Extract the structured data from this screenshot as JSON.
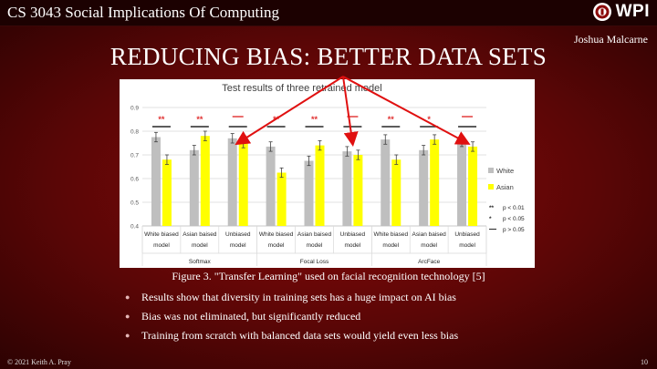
{
  "header": {
    "course_title": "CS 3043 Social Implications Of Computing",
    "logo_text": "WPI",
    "logo_icon": "wpi-seal"
  },
  "author": "Joshua Malcarne",
  "slide_title": "REDUCING BIAS: BETTER DATA SETS",
  "figure_caption": "Figure 3. \"Transfer Learning\" used on facial recognition technology [5]",
  "bullets": [
    "Results show that diversity in training sets has a huge impact on AI bias",
    "Bias was not eliminated, but significantly reduced",
    "Training from scratch with balanced data sets would yield even less bias"
  ],
  "footer": {
    "copyright": "© 2021 Keith A. Pray",
    "page_number": "10"
  },
  "colors": {
    "white_series": "#bfbfbf",
    "asian_series": "#ffff00",
    "significance": "#e03030",
    "arrow": "#e01010"
  },
  "chart_data": {
    "type": "bar",
    "title": "Test results of three retrained model",
    "categories": [
      "White biased model",
      "Asian baised model",
      "Unbiased model",
      "White biased model",
      "Asian baised model",
      "Unbiased model",
      "White biased model",
      "Asian baised model",
      "Unbiased model"
    ],
    "category_lines": [
      [
        "White biased",
        "model"
      ],
      [
        "Asian baised",
        "model"
      ],
      [
        "Unbiased",
        "model"
      ],
      [
        "White biased",
        "model"
      ],
      [
        "Asian baised",
        "model"
      ],
      [
        "Unbiased",
        "model"
      ],
      [
        "White biased",
        "model"
      ],
      [
        "Asian baised",
        "model"
      ],
      [
        "Unbiased",
        "model"
      ]
    ],
    "groups": [
      "Softmax",
      "Focal Loss",
      "ArcFace"
    ],
    "series": [
      {
        "name": "White",
        "color": "#bfbfbf",
        "values": [
          0.775,
          0.72,
          0.77,
          0.735,
          0.675,
          0.715,
          0.765,
          0.72,
          0.755
        ]
      },
      {
        "name": "Asian",
        "color": "#ffff00",
        "values": [
          0.68,
          0.78,
          0.75,
          0.625,
          0.74,
          0.7,
          0.68,
          0.765,
          0.735
        ]
      }
    ],
    "errors": 0.02,
    "significance": [
      "**",
      "**",
      "—",
      "**",
      "**",
      "—",
      "**",
      "*",
      "—"
    ],
    "ylim": [
      0.4,
      0.9
    ],
    "yticks": [
      "0.4",
      "0.5",
      "0.6",
      "0.7",
      "0.8",
      "0.9"
    ],
    "legend_placement": "right",
    "legend_key": [
      {
        "symbol": "**",
        "text": "p < 0.01"
      },
      {
        "symbol": "*",
        "text": "p < 0.05"
      },
      {
        "symbol": "—",
        "text": "p > 0.05"
      }
    ],
    "xlabel": "",
    "ylabel": "",
    "arrows_point_to": "Unbiased model"
  }
}
